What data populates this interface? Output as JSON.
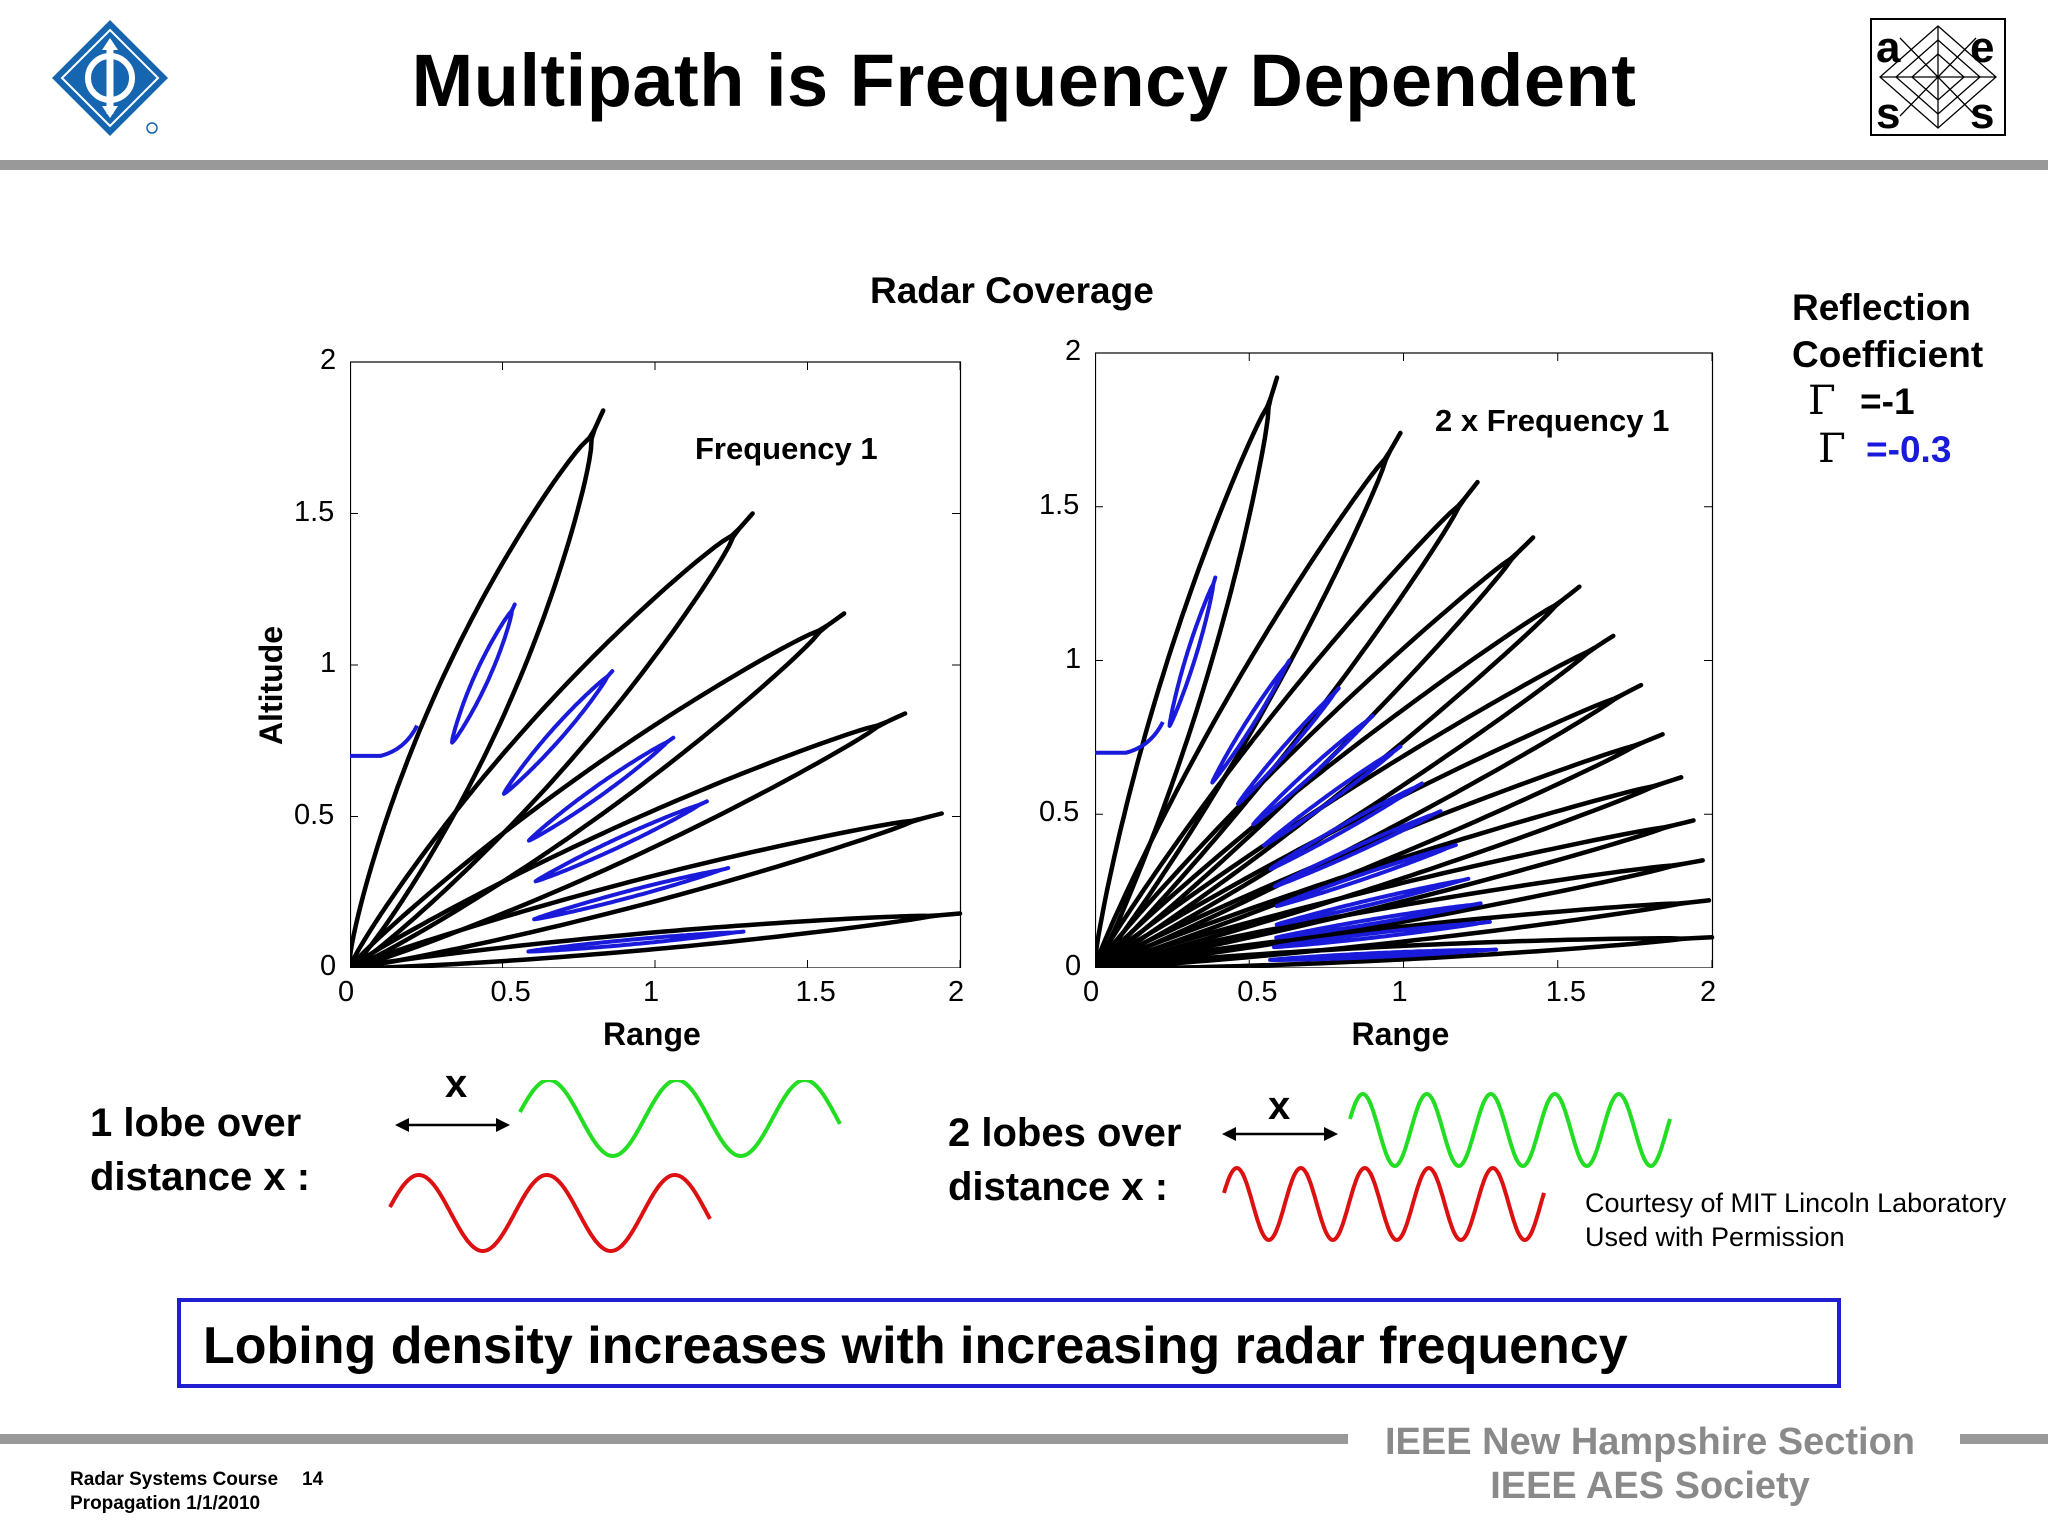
{
  "header": {
    "title": "Multipath is Frequency Dependent"
  },
  "coverage": {
    "title": "Radar Coverage"
  },
  "chart_data": [
    {
      "type": "line",
      "title": "",
      "annotation": "Frequency 1",
      "xlabel": "Range",
      "ylabel": "Altitude",
      "xlim": [
        0,
        2
      ],
      "ylim": [
        0,
        2
      ],
      "x_ticks": [
        "0",
        "0.5",
        "1",
        "1.5",
        "2"
      ],
      "y_ticks": [
        "0",
        "0.5",
        "1",
        "1.5",
        "2"
      ],
      "series": [
        {
          "reflection": "=-1",
          "color": "#000000",
          "lobes": [
            [
              0.83,
              1.84
            ],
            [
              1.32,
              1.5
            ],
            [
              1.62,
              1.17
            ],
            [
              1.82,
              0.84
            ],
            [
              1.94,
              0.51
            ],
            [
              2.0,
              0.18
            ]
          ]
        },
        {
          "reflection": "=-0.3",
          "color": "#1a1adb",
          "start_altitude": 0.7,
          "lobes": [
            [
              0.54,
              1.2
            ],
            [
              0.86,
              0.98
            ],
            [
              1.06,
              0.76
            ],
            [
              1.17,
              0.55
            ],
            [
              1.24,
              0.33
            ],
            [
              1.29,
              0.12
            ]
          ]
        }
      ]
    },
    {
      "type": "line",
      "title": "",
      "annotation": "2 x Frequency 1",
      "xlabel": "Range",
      "ylabel": "",
      "xlim": [
        0,
        2
      ],
      "ylim": [
        0,
        2
      ],
      "x_ticks": [
        "0",
        "0.5",
        "1",
        "1.5",
        "2"
      ],
      "y_ticks": [
        "0",
        "0.5",
        "1",
        "1.5",
        "2"
      ],
      "series": [
        {
          "reflection": "=-1",
          "color": "#000000",
          "lobes": [
            [
              0.59,
              1.92
            ],
            [
              0.99,
              1.74
            ],
            [
              1.24,
              1.58
            ],
            [
              1.42,
              1.4
            ],
            [
              1.57,
              1.24
            ],
            [
              1.68,
              1.08
            ],
            [
              1.77,
              0.92
            ],
            [
              1.84,
              0.76
            ],
            [
              1.9,
              0.62
            ],
            [
              1.94,
              0.48
            ],
            [
              1.97,
              0.35
            ],
            [
              1.99,
              0.22
            ],
            [
              2.0,
              0.1
            ]
          ]
        },
        {
          "reflection": "=-0.3",
          "color": "#1a1adb",
          "start_altitude": 0.7,
          "lobes": [
            [
              0.39,
              1.27
            ],
            [
              0.63,
              1.0
            ],
            [
              0.79,
              0.91
            ],
            [
              0.9,
              0.82
            ],
            [
              0.99,
              0.72
            ],
            [
              1.06,
              0.6
            ],
            [
              1.12,
              0.51
            ],
            [
              1.17,
              0.4
            ],
            [
              1.21,
              0.29
            ],
            [
              1.25,
              0.21
            ],
            [
              1.28,
              0.15
            ],
            [
              1.3,
              0.06
            ]
          ]
        }
      ]
    }
  ],
  "legend": {
    "title_line1": "Reflection",
    "title_line2": "Coefficient",
    "row1_text": "=-1",
    "row1_color": "#000000",
    "row2_text": "=-0.3",
    "row2_color": "#1a1adb",
    "gamma": "Γ"
  },
  "lobes_left": {
    "line1": "1 lobe over",
    "line2": "distance x :",
    "x_label": "x",
    "green_cycles": 2.5,
    "red_cycles": 2.5
  },
  "lobes_right": {
    "line1": "2 lobes over",
    "line2": "distance x :",
    "x_label": "x",
    "green_cycles": 5,
    "red_cycles": 5
  },
  "courtesy": {
    "line1": "Courtesy of MIT Lincoln Laboratory",
    "line2": "Used with Permission"
  },
  "callout": {
    "text": "Lobing density increases with increasing radar frequency"
  },
  "footer": {
    "course_line": "Radar Systems Course",
    "page_number": "14",
    "topic_line": "Propagation  1/1/2010",
    "org_line1": "IEEE New Hampshire Section",
    "org_line2": "IEEE AES Society"
  },
  "colors": {
    "green_wave": "#22dd22",
    "red_wave": "#dd1111",
    "callout_border": "#1f1fd0",
    "rule": "#999999",
    "footer_text": "#8a8a8a"
  }
}
